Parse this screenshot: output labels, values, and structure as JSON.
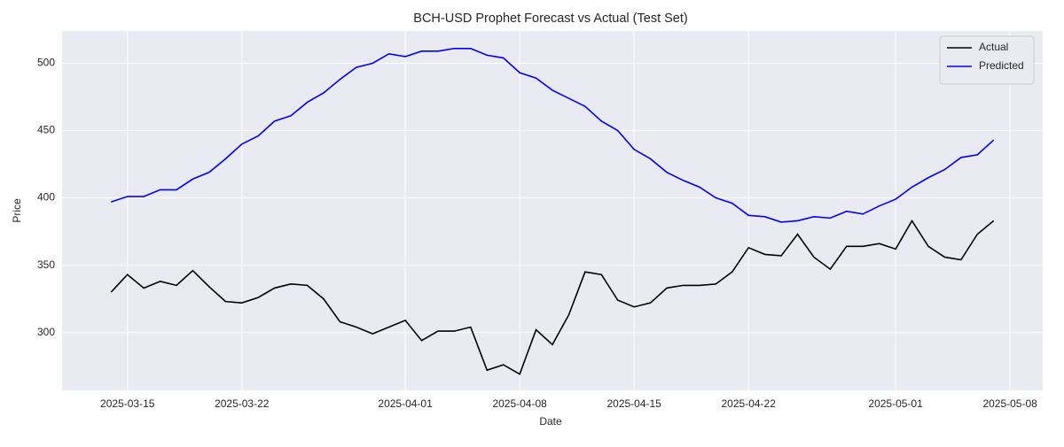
{
  "chart_data": {
    "type": "line",
    "title": "BCH-USD Prophet Forecast vs Actual (Test Set)",
    "x_label": "Date",
    "y_label": "Price",
    "x": [
      "2025-03-14",
      "2025-03-15",
      "2025-03-16",
      "2025-03-17",
      "2025-03-18",
      "2025-03-19",
      "2025-03-20",
      "2025-03-21",
      "2025-03-22",
      "2025-03-23",
      "2025-03-24",
      "2025-03-25",
      "2025-03-26",
      "2025-03-27",
      "2025-03-28",
      "2025-03-29",
      "2025-03-30",
      "2025-03-31",
      "2025-04-01",
      "2025-04-02",
      "2025-04-03",
      "2025-04-04",
      "2025-04-05",
      "2025-04-06",
      "2025-04-07",
      "2025-04-08",
      "2025-04-09",
      "2025-04-10",
      "2025-04-11",
      "2025-04-12",
      "2025-04-13",
      "2025-04-14",
      "2025-04-15",
      "2025-04-16",
      "2025-04-17",
      "2025-04-18",
      "2025-04-19",
      "2025-04-20",
      "2025-04-21",
      "2025-04-22",
      "2025-04-23",
      "2025-04-24",
      "2025-04-25",
      "2025-04-26",
      "2025-04-27",
      "2025-04-28",
      "2025-04-29",
      "2025-04-30",
      "2025-05-01",
      "2025-05-02",
      "2025-05-03",
      "2025-05-04",
      "2025-05-05",
      "2025-05-06",
      "2025-05-07"
    ],
    "series": [
      {
        "name": "Actual",
        "color": "#000000",
        "values": [
          330,
          343,
          333,
          338,
          335,
          346,
          334,
          323,
          322,
          326,
          333,
          336,
          335,
          325,
          308,
          304,
          299,
          304,
          309,
          294,
          301,
          301,
          304,
          272,
          276,
          269,
          302,
          291,
          313,
          345,
          343,
          324,
          319,
          322,
          333,
          335,
          335,
          336,
          345,
          363,
          358,
          357,
          373,
          356,
          347,
          364,
          364,
          366,
          362,
          383,
          364,
          356,
          354,
          373,
          383
        ]
      },
      {
        "name": "Predicted",
        "color": "#0000ff",
        "values": [
          397,
          401,
          401,
          406,
          406,
          414,
          419,
          429,
          440,
          446,
          457,
          461,
          471,
          478,
          488,
          497,
          500,
          507,
          505,
          509,
          509,
          511,
          511,
          506,
          504,
          493,
          489,
          480,
          474,
          468,
          457,
          450,
          436,
          429,
          419,
          413,
          408,
          400,
          396,
          387,
          386,
          382,
          383,
          386,
          385,
          390,
          388,
          394,
          399,
          408,
          415,
          421,
          430,
          432,
          443
        ]
      }
    ],
    "xlim": [
      "2025-03-11",
      "2025-05-10"
    ],
    "xticks": [
      "2025-03-15",
      "2025-03-22",
      "2025-04-01",
      "2025-04-08",
      "2025-04-15",
      "2025-04-22",
      "2025-05-01",
      "2025-05-08"
    ],
    "ylim": [
      257,
      524
    ],
    "yticks": [
      300,
      350,
      400,
      450,
      500
    ],
    "grid": true,
    "legend": "upper right"
  }
}
